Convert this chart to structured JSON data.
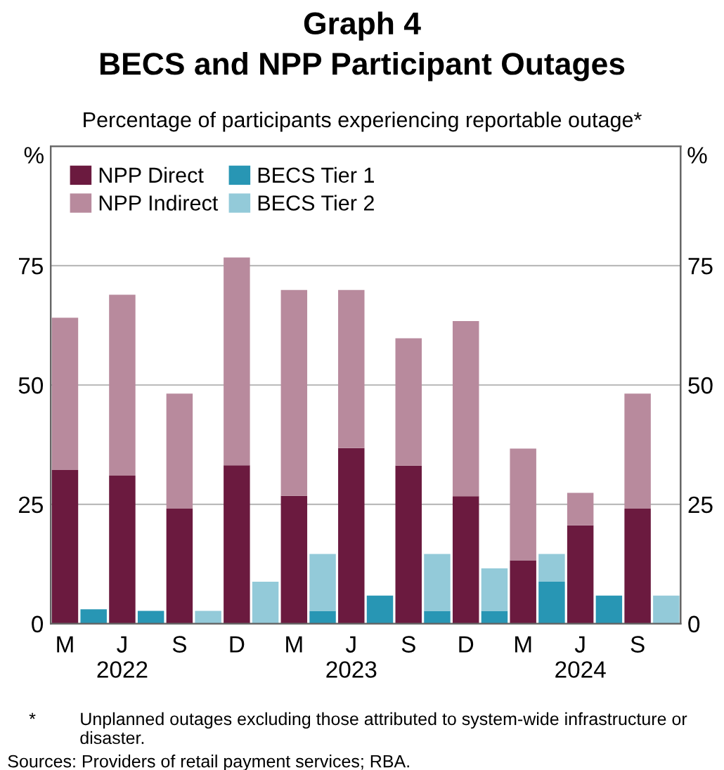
{
  "chart_data": {
    "type": "bar",
    "title": "Graph 4\nBECS and NPP Participant Outages",
    "subtitle": "Percentage of participants experiencing reportable outage*",
    "ylabel": "%",
    "y2label": "%",
    "categories": [
      "M",
      null,
      "J\n2022",
      null,
      "S",
      null,
      "D",
      null,
      "M",
      null,
      "J\n2023",
      null,
      "S",
      null,
      "D",
      null,
      "M",
      null,
      "J\n2024",
      null,
      "S",
      null
    ],
    "stacked": true,
    "series": [
      {
        "name": "NPP Direct",
        "color": "#6b1a3f",
        "values": [
          32.2,
          null,
          31,
          null,
          24.1,
          null,
          33.2,
          null,
          26.8,
          null,
          36.8,
          null,
          33.1,
          null,
          26.7,
          null,
          13.3,
          null,
          20.6,
          null,
          24.1,
          null
        ]
      },
      {
        "name": "NPP Indirect",
        "color": "#b88a9d",
        "values": [
          31.9,
          null,
          37.9,
          null,
          24.1,
          null,
          43.5,
          null,
          43.1,
          null,
          33.1,
          null,
          26.7,
          null,
          36.7,
          null,
          23.4,
          null,
          6.8,
          null,
          24.1,
          null
        ]
      },
      {
        "name": "BECS Tier 1",
        "color": "#2896b4",
        "values": [
          null,
          3.0,
          null,
          2.7,
          null,
          0,
          null,
          0,
          null,
          2.7,
          null,
          5.9,
          null,
          2.7,
          null,
          2.7,
          null,
          8.8,
          null,
          5.9,
          null,
          0
        ]
      },
      {
        "name": "BECS Tier 2",
        "color": "#93cad9",
        "values": [
          null,
          0,
          null,
          0,
          null,
          2.7,
          null,
          8.8,
          null,
          11.9,
          null,
          0,
          null,
          11.9,
          null,
          8.9,
          null,
          5.8,
          null,
          0,
          null,
          5.9
        ]
      }
    ],
    "ylim": [
      0,
      100
    ],
    "yticks": [
      0,
      25,
      50,
      75
    ],
    "y2lim": [
      0,
      100
    ],
    "y2ticks": [
      0,
      25,
      50,
      75
    ],
    "grid": "y",
    "legend": "top left",
    "annotations": [
      "*\tUnplanned outages excluding those attributed to system-wide infrastructure or disaster.",
      "Sources: Providers of retail payment services; RBA."
    ]
  }
}
